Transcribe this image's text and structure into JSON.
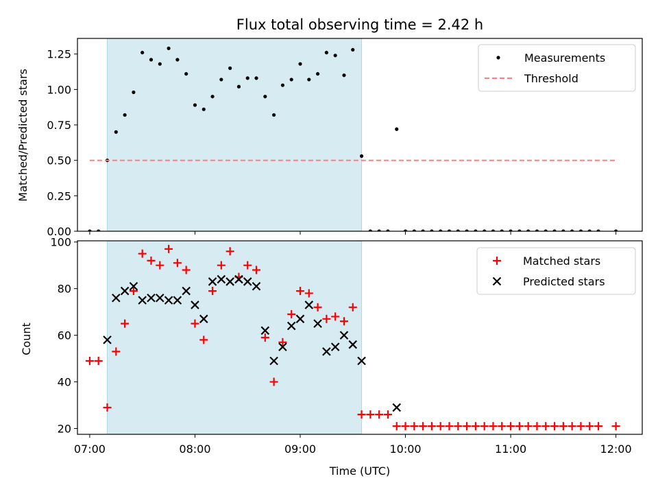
{
  "chart_data": [
    {
      "type": "scatter",
      "title": "Flux total observing time = 2.42 h",
      "xlabel": "",
      "ylabel": "Matched/Predicted stars",
      "ylim": [
        0,
        1.36
      ],
      "yticks": [
        0.0,
        0.25,
        0.5,
        0.75,
        1.0,
        1.25
      ],
      "ytick_labels": [
        "0.00",
        "0.25",
        "0.50",
        "0.75",
        "1.00",
        "1.25"
      ],
      "xlim": [
        "06:53",
        "12:15"
      ],
      "shaded_interval": [
        "07:10",
        "09:35"
      ],
      "shade_color": "#add8e6",
      "legend": "top-right",
      "grid": false,
      "series": [
        {
          "name": "Measurements",
          "marker": "dot",
          "color": "#000000",
          "x": [
            "07:00",
            "07:05",
            "07:10",
            "07:15",
            "07:20",
            "07:25",
            "07:30",
            "07:35",
            "07:40",
            "07:45",
            "07:50",
            "07:55",
            "08:00",
            "08:05",
            "08:10",
            "08:15",
            "08:20",
            "08:25",
            "08:30",
            "08:35",
            "08:40",
            "08:45",
            "08:50",
            "08:55",
            "09:00",
            "09:05",
            "09:10",
            "09:15",
            "09:20",
            "09:25",
            "09:30",
            "09:35",
            "09:40",
            "09:45",
            "09:50",
            "09:55",
            "10:00",
            "10:05",
            "10:10",
            "10:15",
            "10:20",
            "10:25",
            "10:30",
            "10:35",
            "10:40",
            "10:45",
            "10:50",
            "10:55",
            "11:00",
            "11:05",
            "11:10",
            "11:15",
            "11:20",
            "11:25",
            "11:30",
            "11:35",
            "11:40",
            "11:45",
            "11:50",
            "12:00"
          ],
          "y": [
            0,
            0,
            0.5,
            0.7,
            0.82,
            0.98,
            1.26,
            1.21,
            1.18,
            1.29,
            1.21,
            1.11,
            0.89,
            0.86,
            0.95,
            1.07,
            1.15,
            1.02,
            1.08,
            1.08,
            0.95,
            0.82,
            1.03,
            1.07,
            1.18,
            1.07,
            1.11,
            1.26,
            1.24,
            1.1,
            1.28,
            0.53,
            0,
            0,
            0,
            0.72,
            0,
            0,
            0,
            0,
            0,
            0,
            0,
            0,
            0,
            0,
            0,
            0,
            0,
            0,
            0,
            0,
            0,
            0,
            0,
            0,
            0,
            0,
            0,
            0
          ]
        },
        {
          "name": "Threshold",
          "style": "dashed",
          "color": "#ff7f7f",
          "x": [
            "07:00",
            "12:00"
          ],
          "y": [
            0.5,
            0.5
          ]
        }
      ]
    },
    {
      "type": "scatter",
      "title": "",
      "xlabel": "Time (UTC)",
      "ylabel": "Count",
      "ylim": [
        17.5,
        100.5
      ],
      "yticks": [
        20,
        40,
        60,
        80,
        100
      ],
      "ytick_labels": [
        "20",
        "40",
        "60",
        "80",
        "100"
      ],
      "xlim": [
        "06:53",
        "12:15"
      ],
      "xticks": [
        "07:00",
        "08:00",
        "09:00",
        "10:00",
        "11:00",
        "12:00"
      ],
      "xtick_labels": [
        "07:00",
        "08:00",
        "09:00",
        "10:00",
        "11:00",
        "12:00"
      ],
      "shaded_interval": [
        "07:10",
        "09:35"
      ],
      "shade_color": "#add8e6",
      "legend": "top-right",
      "grid": false,
      "series": [
        {
          "name": "Matched stars",
          "marker": "plus",
          "color": "#ff0000",
          "x": [
            "07:00",
            "07:05",
            "07:10",
            "07:15",
            "07:20",
            "07:25",
            "07:30",
            "07:35",
            "07:40",
            "07:45",
            "07:50",
            "07:55",
            "08:00",
            "08:05",
            "08:10",
            "08:15",
            "08:20",
            "08:25",
            "08:30",
            "08:35",
            "08:40",
            "08:45",
            "08:50",
            "08:55",
            "09:00",
            "09:05",
            "09:10",
            "09:15",
            "09:20",
            "09:25",
            "09:30",
            "09:35",
            "09:40",
            "09:45",
            "09:50",
            "09:55",
            "10:00",
            "10:05",
            "10:10",
            "10:15",
            "10:20",
            "10:25",
            "10:30",
            "10:35",
            "10:40",
            "10:45",
            "10:50",
            "10:55",
            "11:00",
            "11:05",
            "11:10",
            "11:15",
            "11:20",
            "11:25",
            "11:30",
            "11:35",
            "11:40",
            "11:45",
            "11:50",
            "12:00"
          ],
          "y": [
            49,
            49,
            29,
            53,
            65,
            79,
            95,
            92,
            90,
            97,
            91,
            88,
            65,
            58,
            79,
            90,
            96,
            85,
            90,
            88,
            59,
            40,
            57,
            69,
            79,
            78,
            72,
            67,
            68,
            66,
            72,
            26,
            26,
            26,
            26,
            21,
            21,
            21,
            21,
            21,
            21,
            21,
            21,
            21,
            21,
            21,
            21,
            21,
            21,
            21,
            21,
            21,
            21,
            21,
            21,
            21,
            21,
            21,
            21,
            21
          ]
        },
        {
          "name": "Predicted stars",
          "marker": "x",
          "color": "#000000",
          "x": [
            "07:10",
            "07:15",
            "07:20",
            "07:25",
            "07:30",
            "07:35",
            "07:40",
            "07:45",
            "07:50",
            "07:55",
            "08:00",
            "08:05",
            "08:10",
            "08:15",
            "08:20",
            "08:25",
            "08:30",
            "08:35",
            "08:40",
            "08:45",
            "08:50",
            "08:55",
            "09:00",
            "09:05",
            "09:10",
            "09:15",
            "09:20",
            "09:25",
            "09:30",
            "09:35",
            "09:55"
          ],
          "y": [
            58,
            76,
            79,
            81,
            75,
            76,
            76,
            75,
            75,
            79,
            73,
            67,
            83,
            84,
            83,
            84,
            83,
            81,
            62,
            49,
            55,
            64,
            67,
            73,
            65,
            53,
            55,
            60,
            56,
            49,
            29
          ]
        }
      ]
    }
  ]
}
